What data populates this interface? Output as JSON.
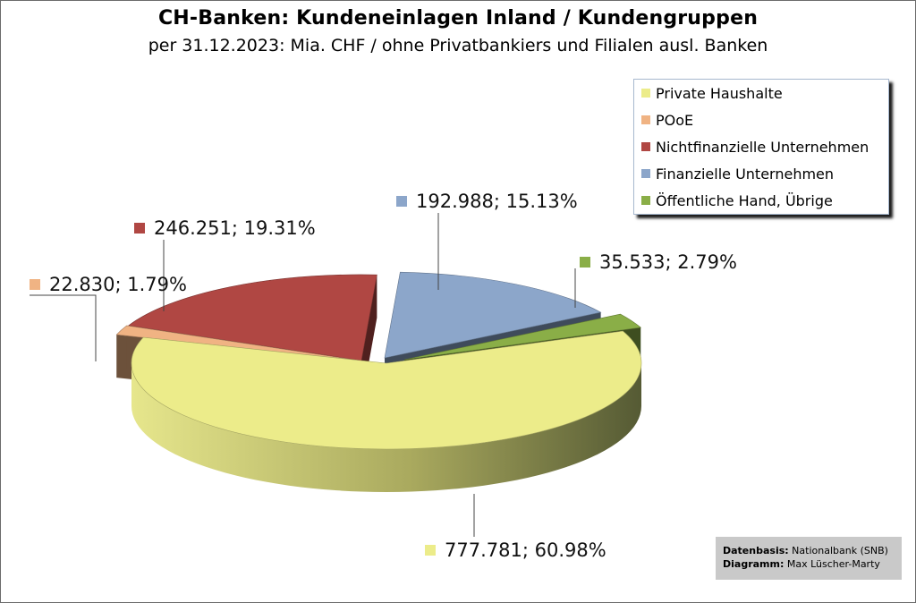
{
  "chart_data": {
    "type": "pie",
    "title": "CH-Banken: Kundeneinlagen Inland / Kundengruppen",
    "subtitle": "per 31.12.2023: Mia. CHF / ohne Privatbankiers und Filialen ausl. Banken",
    "legend_position": "top-right",
    "three_d": true,
    "exploded": true,
    "slices": [
      {
        "name": "Private Haushalte",
        "value": 777.781,
        "percent": 60.98,
        "label": "777.781; 60.98%",
        "color": "#ecec8a"
      },
      {
        "name": "POoE",
        "value": 22.83,
        "percent": 1.79,
        "label": "22.830; 1.79%",
        "color": "#f0b383"
      },
      {
        "name": "Nichtfinanzielle Unternehmen",
        "value": 246.251,
        "percent": 19.31,
        "label": "246.251; 19.31%",
        "color": "#b04743"
      },
      {
        "name": "Finanzielle Unternehmen",
        "value": 192.988,
        "percent": 15.13,
        "label": "192.988; 15.13%",
        "color": "#8ca6ca"
      },
      {
        "name": "Öffentliche Hand, Übrige",
        "value": 35.533,
        "percent": 2.79,
        "label": "35.533; 2.79%",
        "color": "#8aae47"
      }
    ]
  },
  "source": {
    "line1_key": "Datenbasis:",
    "line1_value": "Nationalbank (SNB)",
    "line2_key": "Diagramm:",
    "line2_value": "Max Lüscher-Marty"
  }
}
